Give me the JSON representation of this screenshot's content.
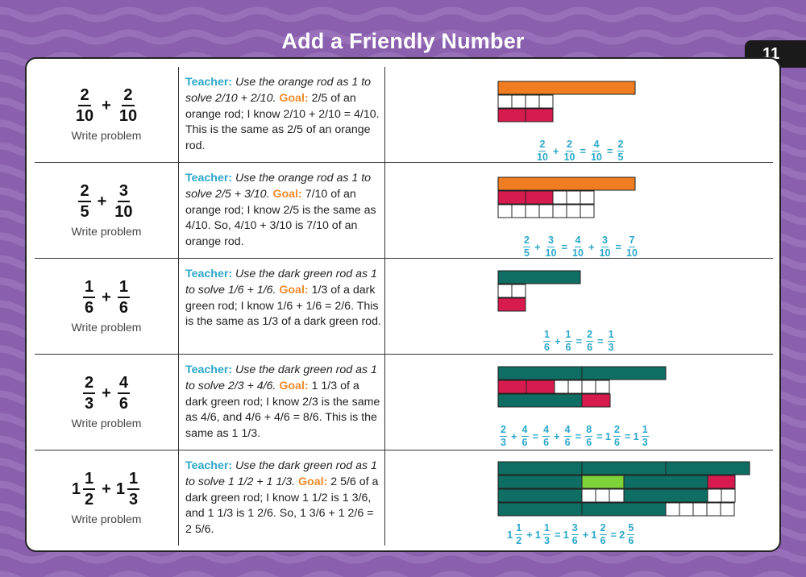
{
  "title": "Add a Friendly Number",
  "page_number": "11",
  "colors": {
    "background": "#8a5fae",
    "orange_rod": "#f07d22",
    "red_rod": "#d81b4f",
    "dark_green_rod": "#0f6e63",
    "light_green_rod": "#7ed23a",
    "teacher_label": "#2aa7c9",
    "goal_label": "#f0892a"
  },
  "rows": [
    {
      "problem": {
        "a_num": "2",
        "a_den": "10",
        "op": "+",
        "b_num": "2",
        "b_den": "10"
      },
      "write_label": "Write problem",
      "teacher_label": "Teacher:",
      "teacher_text": "Use the orange rod as 1 to solve 2/10 + 2/10.",
      "goal_label": "Goal:",
      "goal_text": "2/5 of an orange rod; I know 2/10 + 2/10 = 4/10. This is the same as 2/5 of an orange rod.",
      "equation": {
        "f1n": "2",
        "f1d": "10",
        "o1": "+",
        "f2n": "2",
        "f2d": "10",
        "o2": "=",
        "f3n": "4",
        "f3d": "10",
        "o3": "=",
        "f4n": "2",
        "f4d": "5"
      }
    },
    {
      "problem": {
        "a_num": "2",
        "a_den": "5",
        "op": "+",
        "b_num": "3",
        "b_den": "10"
      },
      "write_label": "Write problem",
      "teacher_label": "Teacher:",
      "teacher_text": "Use the orange rod as 1 to solve 2/5 + 3/10.",
      "goal_label": "Goal:",
      "goal_text": "7/10 of an orange rod; I know 2/5 is the same as 4/10. So, 4/10 + 3/10 is 7/10 of an orange rod.",
      "equation": {
        "f1n": "2",
        "f1d": "5",
        "o1": "+",
        "f2n": "3",
        "f2d": "10",
        "o2": "=",
        "f3n": "4",
        "f3d": "10",
        "o3": "+",
        "f4n": "3",
        "f4d": "10",
        "o4": "=",
        "f5n": "7",
        "f5d": "10"
      }
    },
    {
      "problem": {
        "a_num": "1",
        "a_den": "6",
        "op": "+",
        "b_num": "1",
        "b_den": "6"
      },
      "write_label": "Write problem",
      "teacher_label": "Teacher:",
      "teacher_text": "Use the dark green rod as 1 to solve 1/6 + 1/6.",
      "goal_label": "Goal:",
      "goal_text": "1/3 of a dark green rod; I know 1/6 + 1/6 = 2/6. This is the same as 1/3 of a dark green rod.",
      "equation": {
        "f1n": "1",
        "f1d": "6",
        "o1": "+",
        "f2n": "1",
        "f2d": "6",
        "o2": "=",
        "f3n": "2",
        "f3d": "6",
        "o3": "=",
        "f4n": "1",
        "f4d": "3"
      }
    },
    {
      "problem": {
        "a_num": "2",
        "a_den": "3",
        "op": "+",
        "b_num": "4",
        "b_den": "6"
      },
      "write_label": "Write problem",
      "teacher_label": "Teacher:",
      "teacher_text": "Use the dark green rod as 1 to solve 2/3 + 4/6.",
      "goal_label": "Goal:",
      "goal_text": "1 1/3 of a dark green rod; I know 2/3 is the same as 4/6, and 4/6 + 4/6 = 8/6. This is the same as 1 1/3.",
      "equation": {
        "f1n": "2",
        "f1d": "3",
        "o1": "+",
        "f2n": "4",
        "f2d": "6",
        "o2": "=",
        "f3n": "4",
        "f3d": "6",
        "o3": "+",
        "f4n": "4",
        "f4d": "6",
        "o4": "=",
        "f5n": "8",
        "f5d": "6",
        "o5": "=",
        "w6": "1",
        "f6n": "2",
        "f6d": "6",
        "o6": "=",
        "w7": "1",
        "f7n": "1",
        "f7d": "3"
      }
    },
    {
      "problem": {
        "a_whole": "1",
        "a_num": "1",
        "a_den": "2",
        "op": "+",
        "b_whole": "1",
        "b_num": "1",
        "b_den": "3"
      },
      "write_label": "Write problem",
      "teacher_label": "Teacher:",
      "teacher_text": "Use the dark green rod as 1 to solve 1 1/2 + 1 1/3.",
      "goal_label": "Goal:",
      "goal_text": "2 5/6 of a dark green rod; I know 1 1/2 is 1 3/6, and 1 1/3 is 1 2/6. So, 1 3/6 + 1 2/6 = 2 5/6.",
      "equation": {
        "w1": "1",
        "f1n": "1",
        "f1d": "2",
        "o1": "+",
        "w2": "1",
        "f2n": "1",
        "f2d": "3",
        "o2": "=",
        "w3": "1",
        "f3n": "3",
        "f3d": "6",
        "o3": "+",
        "w4": "1",
        "f4n": "2",
        "f4d": "6",
        "o4": "=",
        "w5": "2",
        "f5n": "5",
        "f5d": "6"
      }
    }
  ]
}
